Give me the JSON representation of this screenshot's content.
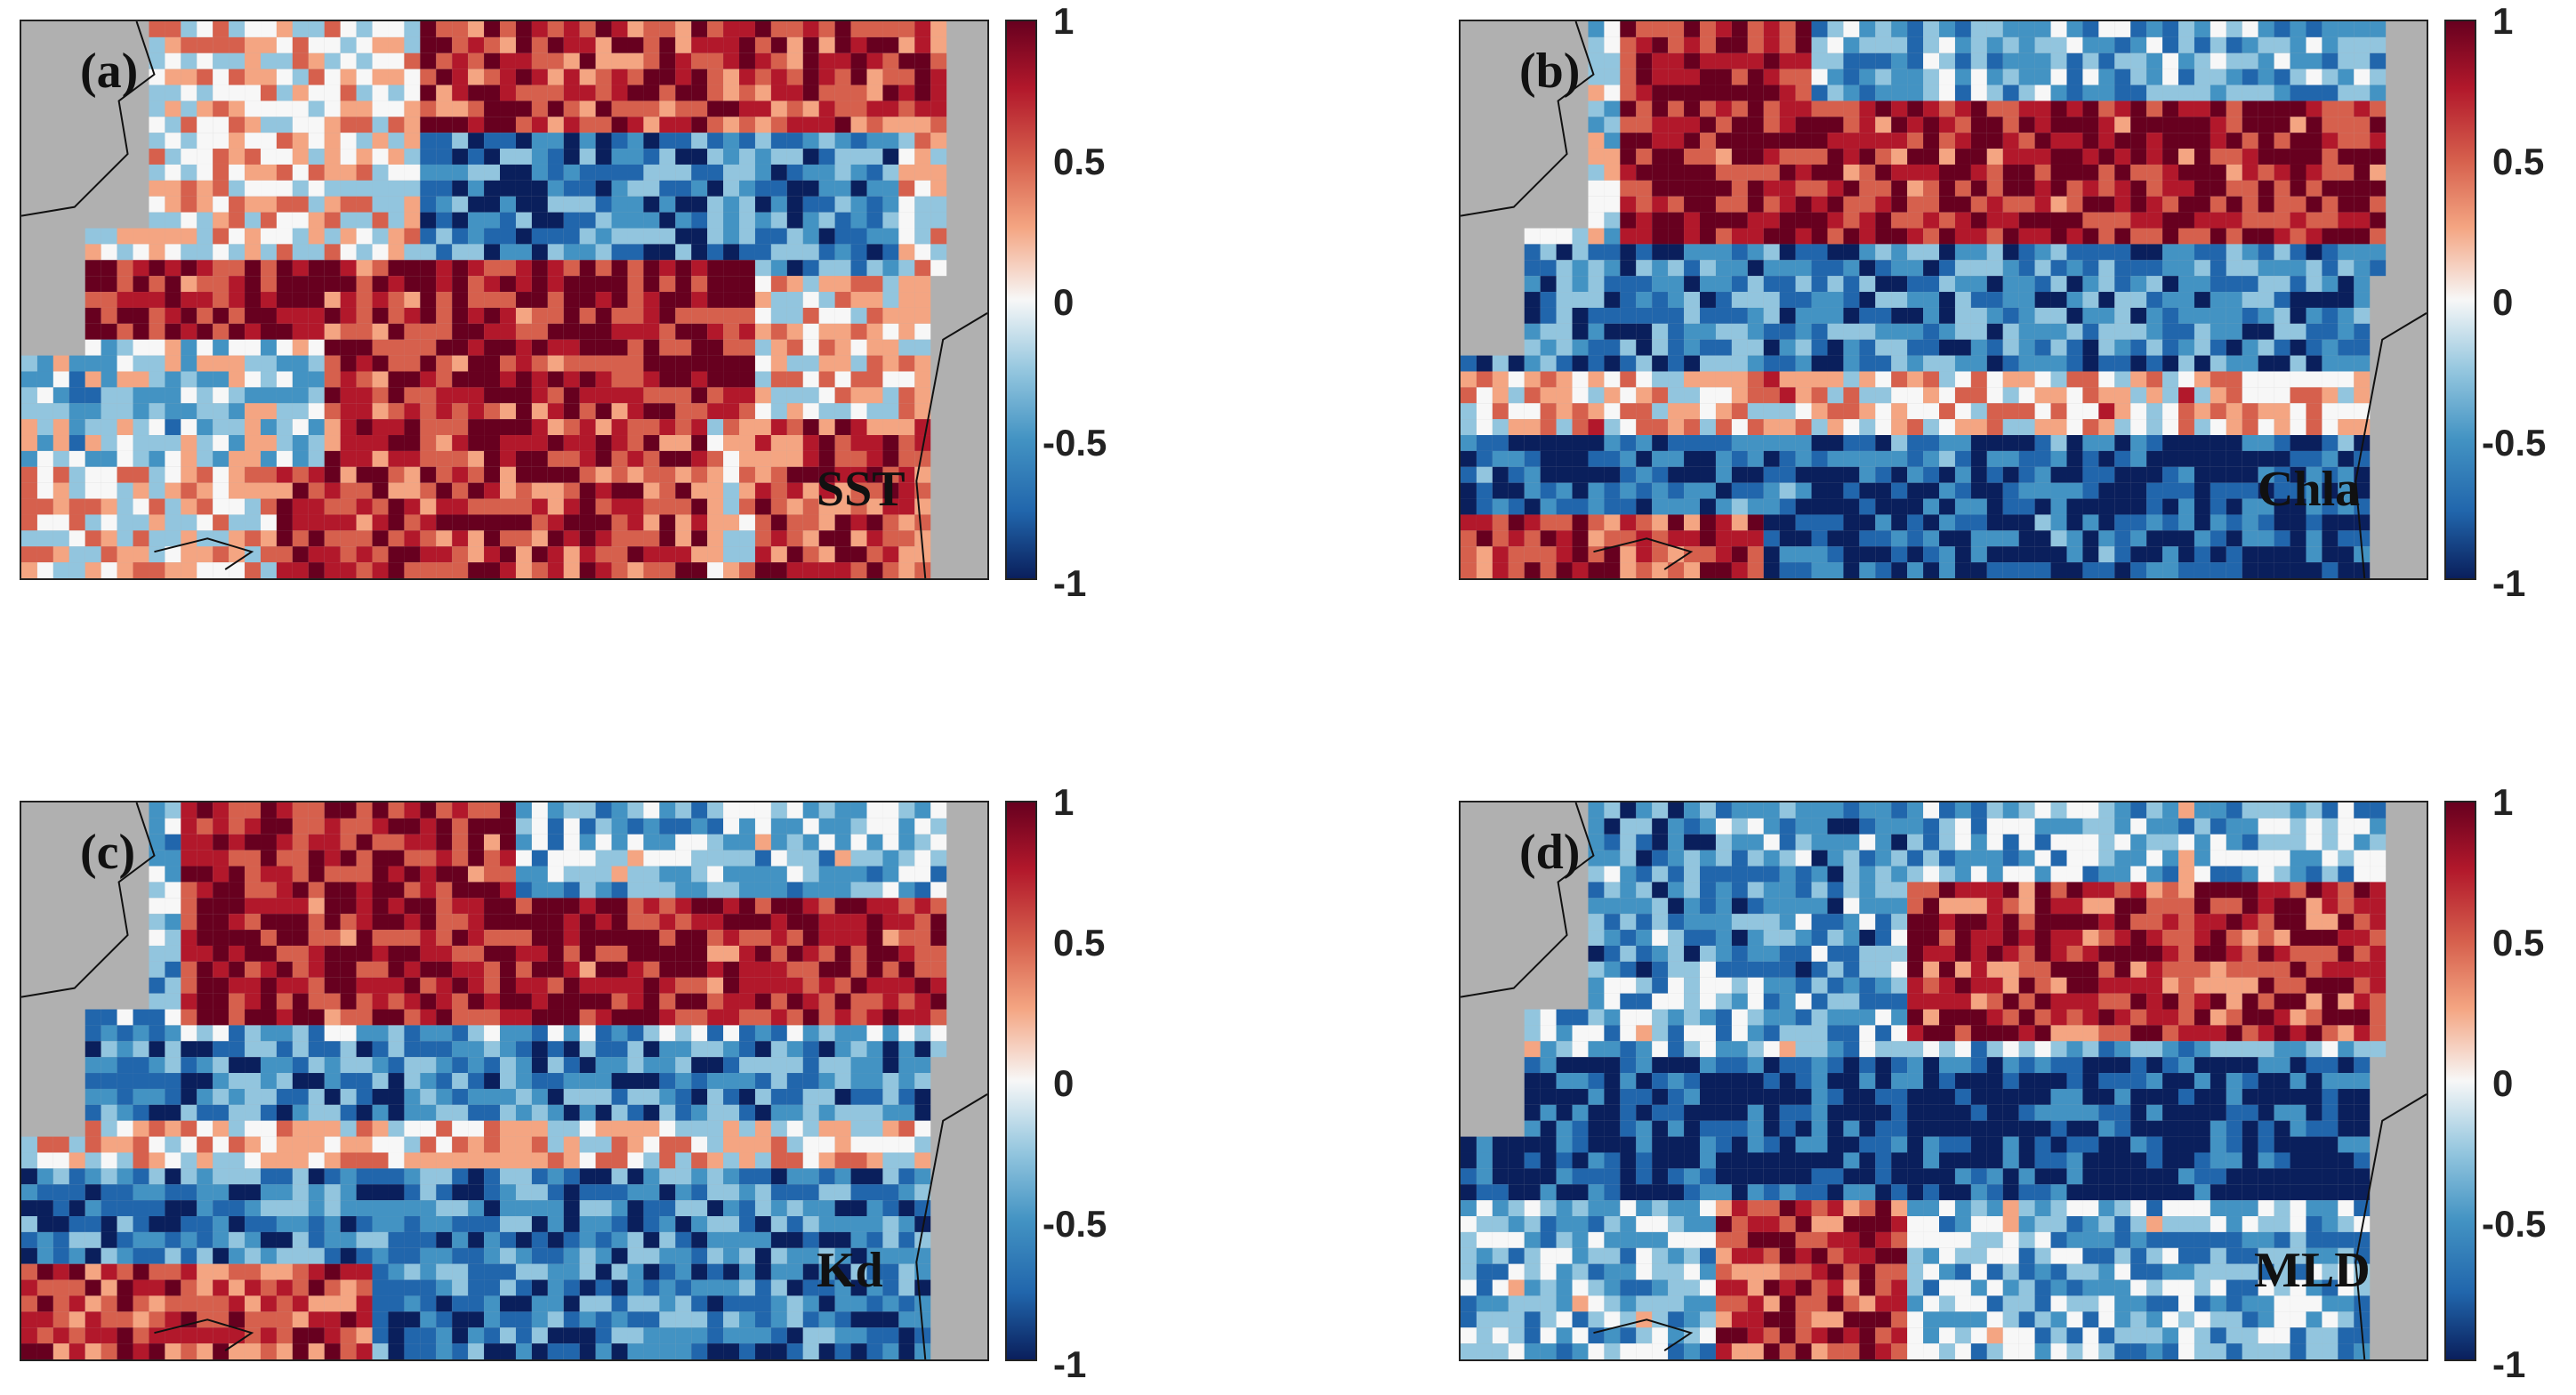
{
  "colorbar": {
    "ticks": [
      "1",
      "0.5",
      "0",
      "-0.5",
      "-1"
    ],
    "range": [
      -1,
      1
    ],
    "colors": [
      "#67001f",
      "#b2182b",
      "#d6604d",
      "#f4a582",
      "#f7f7f7",
      "#92c5de",
      "#4393c3",
      "#2166ac",
      "#0a1f5c"
    ]
  },
  "land_color": "#b0b0b0",
  "panels": [
    {
      "tag": "(a)",
      "variable": "SST"
    },
    {
      "tag": "(b)",
      "variable": "Chla"
    },
    {
      "tag": "(c)",
      "variable": "Kd"
    },
    {
      "tag": "(d)",
      "variable": "MLD"
    }
  ]
}
